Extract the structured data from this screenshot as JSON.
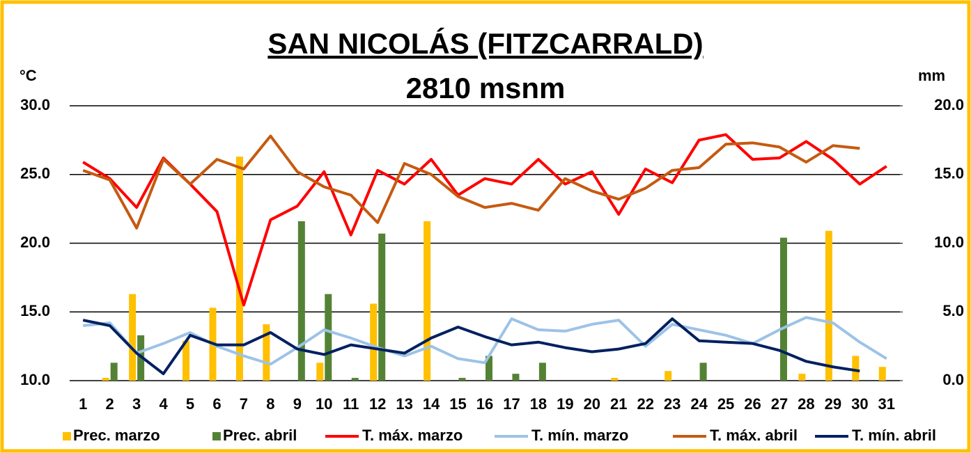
{
  "chart_data": {
    "type": "bar-line",
    "title": "SAN NICOLÁS (FITZCARRALD)",
    "subtitle": "2810 msnm",
    "y_label": "°C",
    "y2_label": "mm",
    "categories": [
      "1",
      "2",
      "3",
      "4",
      "5",
      "6",
      "7",
      "8",
      "9",
      "10",
      "11",
      "12",
      "13",
      "14",
      "15",
      "16",
      "17",
      "18",
      "19",
      "20",
      "21",
      "22",
      "23",
      "24",
      "25",
      "26",
      "27",
      "28",
      "29",
      "30",
      "31"
    ],
    "ylim": [
      10,
      30
    ],
    "yticks": [
      {
        "value": 10,
        "label": "10.0"
      },
      {
        "value": 15,
        "label": "15.0"
      },
      {
        "value": 20,
        "label": "20.0"
      },
      {
        "value": 25,
        "label": "25.0"
      },
      {
        "value": 30,
        "label": "30.0"
      }
    ],
    "y2lim": [
      0,
      20
    ],
    "y2ticks": [
      {
        "value": 0,
        "label": "0.0"
      },
      {
        "value": 5,
        "label": "5.0"
      },
      {
        "value": 10,
        "label": "10.0"
      },
      {
        "value": 15,
        "label": "15.0"
      },
      {
        "value": 20,
        "label": "20.0"
      }
    ],
    "grid": true,
    "legend": "bottom",
    "series": [
      {
        "name": "Prec. marzo",
        "kind": "bar",
        "axis": "y2",
        "color": "#ffc000",
        "values": [
          0,
          0.2,
          6.3,
          0,
          2.9,
          5.3,
          16.3,
          4.1,
          0,
          1.3,
          0,
          5.6,
          0,
          11.6,
          0,
          0,
          0,
          0,
          0,
          0,
          0.2,
          0,
          0.7,
          0,
          0,
          0,
          0,
          0.5,
          10.9,
          1.8,
          1.0
        ]
      },
      {
        "name": "Prec. abril",
        "kind": "bar",
        "axis": "y2",
        "color": "#548235",
        "values": [
          0,
          1.3,
          3.3,
          0,
          0,
          0,
          0,
          0,
          11.6,
          6.3,
          0.2,
          10.7,
          0,
          0,
          0.2,
          1.8,
          0.5,
          1.3,
          0,
          0,
          0,
          0,
          0,
          1.3,
          0,
          0,
          10.4,
          0,
          0,
          0,
          null
        ]
      },
      {
        "name": "T. máx. marzo",
        "kind": "line",
        "color": "#ff0000",
        "values": [
          25.9,
          24.7,
          22.6,
          26.2,
          24.3,
          22.3,
          15.5,
          21.7,
          22.7,
          25.2,
          20.6,
          25.3,
          24.3,
          26.1,
          23.5,
          24.7,
          24.3,
          26.1,
          24.3,
          25.2,
          22.1,
          25.4,
          24.4,
          27.5,
          27.9,
          26.1,
          26.2,
          27.4,
          26.1,
          24.3,
          25.6
        ]
      },
      {
        "name": "T. mín. marzo",
        "kind": "line",
        "color": "#9dc3e6",
        "values": [
          14.0,
          14.2,
          12.0,
          12.7,
          13.5,
          12.5,
          11.8,
          11.2,
          12.4,
          13.7,
          13.1,
          12.4,
          11.8,
          12.5,
          11.6,
          11.3,
          14.5,
          13.7,
          13.6,
          14.1,
          14.4,
          12.5,
          14.1,
          13.7,
          13.3,
          12.7,
          13.7,
          14.6,
          14.2,
          12.8,
          11.6
        ]
      },
      {
        "name": "T. máx. abril",
        "kind": "line",
        "color": "#c55a11",
        "values": [
          25.3,
          24.6,
          21.1,
          26.1,
          24.3,
          26.1,
          25.4,
          27.8,
          25.2,
          24.1,
          23.5,
          21.5,
          25.8,
          25.0,
          23.4,
          22.6,
          22.9,
          22.4,
          24.7,
          23.8,
          23.2,
          24.0,
          25.3,
          25.5,
          27.2,
          27.3,
          27.0,
          25.9,
          27.1,
          26.9,
          null
        ]
      },
      {
        "name": "T. mín. abril",
        "kind": "line",
        "color": "#002060",
        "values": [
          14.4,
          14.0,
          12.0,
          10.5,
          13.3,
          12.6,
          12.6,
          13.5,
          12.3,
          11.9,
          12.6,
          12.3,
          12.0,
          13.1,
          13.9,
          13.2,
          12.6,
          12.8,
          12.4,
          12.1,
          12.3,
          12.7,
          14.5,
          12.9,
          12.8,
          12.7,
          12.2,
          11.4,
          11.0,
          10.7,
          null
        ]
      }
    ]
  }
}
